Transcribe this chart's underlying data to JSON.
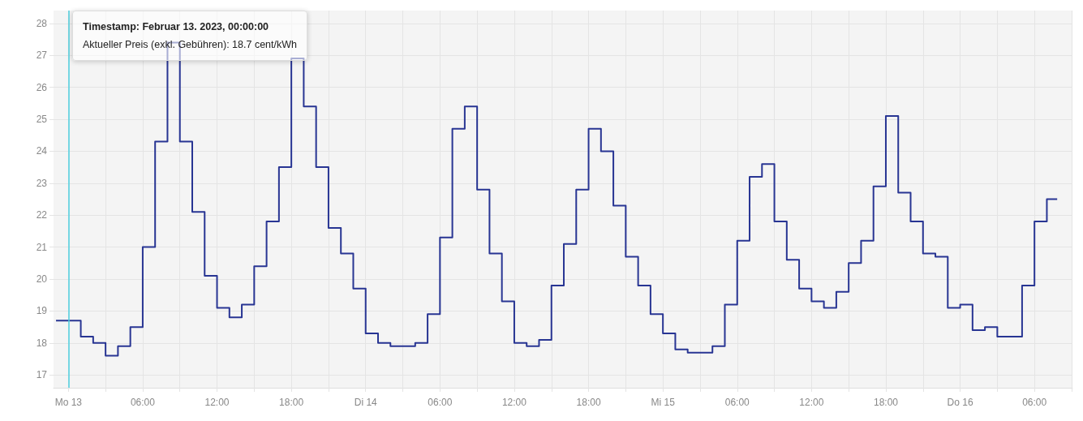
{
  "chart_data": {
    "type": "step",
    "annotations": [
      "Timestamp: Februar 13. 2023, 00:00:00",
      "Aktueller Preis (exkl. Gebühren): 18.7 cent/kWh"
    ],
    "x": [
      "2023-02-12T23:00",
      "2023-02-13T00:00",
      "2023-02-13T01:00",
      "2023-02-13T02:00",
      "2023-02-13T03:00",
      "2023-02-13T04:00",
      "2023-02-13T05:00",
      "2023-02-13T06:00",
      "2023-02-13T07:00",
      "2023-02-13T08:00",
      "2023-02-13T09:00",
      "2023-02-13T10:00",
      "2023-02-13T11:00",
      "2023-02-13T12:00",
      "2023-02-13T13:00",
      "2023-02-13T14:00",
      "2023-02-13T15:00",
      "2023-02-13T16:00",
      "2023-02-13T17:00",
      "2023-02-13T18:00",
      "2023-02-13T19:00",
      "2023-02-13T20:00",
      "2023-02-13T21:00",
      "2023-02-13T22:00",
      "2023-02-13T23:00",
      "2023-02-14T00:00",
      "2023-02-14T01:00",
      "2023-02-14T02:00",
      "2023-02-14T03:00",
      "2023-02-14T04:00",
      "2023-02-14T05:00",
      "2023-02-14T06:00",
      "2023-02-14T07:00",
      "2023-02-14T08:00",
      "2023-02-14T09:00",
      "2023-02-14T10:00",
      "2023-02-14T11:00",
      "2023-02-14T12:00",
      "2023-02-14T13:00",
      "2023-02-14T14:00",
      "2023-02-14T15:00",
      "2023-02-14T16:00",
      "2023-02-14T17:00",
      "2023-02-14T18:00",
      "2023-02-14T19:00",
      "2023-02-14T20:00",
      "2023-02-14T21:00",
      "2023-02-14T22:00",
      "2023-02-14T23:00",
      "2023-02-15T00:00",
      "2023-02-15T01:00",
      "2023-02-15T02:00",
      "2023-02-15T03:00",
      "2023-02-15T04:00",
      "2023-02-15T05:00",
      "2023-02-15T06:00",
      "2023-02-15T07:00",
      "2023-02-15T08:00",
      "2023-02-15T09:00",
      "2023-02-15T10:00",
      "2023-02-15T11:00",
      "2023-02-15T12:00",
      "2023-02-15T13:00",
      "2023-02-15T14:00",
      "2023-02-15T15:00",
      "2023-02-15T16:00",
      "2023-02-15T17:00",
      "2023-02-15T18:00",
      "2023-02-15T19:00",
      "2023-02-15T20:00",
      "2023-02-15T21:00",
      "2023-02-15T22:00",
      "2023-02-15T23:00",
      "2023-02-16T00:00",
      "2023-02-16T01:00",
      "2023-02-16T02:00",
      "2023-02-16T03:00",
      "2023-02-16T04:00",
      "2023-02-16T05:00",
      "2023-02-16T06:00",
      "2023-02-16T07:00",
      "2023-02-16T07:50"
    ],
    "values": [
      18.7,
      18.7,
      18.2,
      18.0,
      17.6,
      17.9,
      18.5,
      21.0,
      24.3,
      27.4,
      24.3,
      22.1,
      20.1,
      19.1,
      18.8,
      19.2,
      20.4,
      21.8,
      23.5,
      26.9,
      25.4,
      23.5,
      21.6,
      20.8,
      19.7,
      18.3,
      18.0,
      17.9,
      17.9,
      18.0,
      18.9,
      21.3,
      24.7,
      25.4,
      22.8,
      20.8,
      19.3,
      18.0,
      17.9,
      18.1,
      19.8,
      21.1,
      22.8,
      24.7,
      24.0,
      22.3,
      20.7,
      19.8,
      18.9,
      18.3,
      17.8,
      17.7,
      17.7,
      17.9,
      19.2,
      21.2,
      23.2,
      23.6,
      21.8,
      20.6,
      19.7,
      19.3,
      19.1,
      19.6,
      20.5,
      21.2,
      22.9,
      25.1,
      22.7,
      21.8,
      20.8,
      20.7,
      19.1,
      19.2,
      18.4,
      18.5,
      18.2,
      18.2,
      19.8,
      21.8,
      22.5,
      22.5
    ],
    "color": "#283593",
    "xlim": [
      "2023-02-12T22:48",
      "2023-02-16T09:04"
    ],
    "xticks": [
      {
        "value": "2023-02-13T00:00",
        "label": "Mo 13"
      },
      {
        "value": "2023-02-13T03:00",
        "label": null
      },
      {
        "value": "2023-02-13T06:00",
        "label": "06:00"
      },
      {
        "value": "2023-02-13T09:00",
        "label": null
      },
      {
        "value": "2023-02-13T12:00",
        "label": "12:00"
      },
      {
        "value": "2023-02-13T15:00",
        "label": null
      },
      {
        "value": "2023-02-13T18:00",
        "label": "18:00"
      },
      {
        "value": "2023-02-13T21:00",
        "label": null
      },
      {
        "value": "2023-02-14T00:00",
        "label": "Di 14"
      },
      {
        "value": "2023-02-14T03:00",
        "label": null
      },
      {
        "value": "2023-02-14T06:00",
        "label": "06:00"
      },
      {
        "value": "2023-02-14T09:00",
        "label": null
      },
      {
        "value": "2023-02-14T12:00",
        "label": "12:00"
      },
      {
        "value": "2023-02-14T15:00",
        "label": null
      },
      {
        "value": "2023-02-14T18:00",
        "label": "18:00"
      },
      {
        "value": "2023-02-14T21:00",
        "label": null
      },
      {
        "value": "2023-02-15T00:00",
        "label": "Mi 15"
      },
      {
        "value": "2023-02-15T03:00",
        "label": null
      },
      {
        "value": "2023-02-15T06:00",
        "label": "06:00"
      },
      {
        "value": "2023-02-15T09:00",
        "label": null
      },
      {
        "value": "2023-02-15T12:00",
        "label": "12:00"
      },
      {
        "value": "2023-02-15T15:00",
        "label": null
      },
      {
        "value": "2023-02-15T18:00",
        "label": "18:00"
      },
      {
        "value": "2023-02-15T21:00",
        "label": null
      },
      {
        "value": "2023-02-16T00:00",
        "label": "Do 16"
      },
      {
        "value": "2023-02-16T03:00",
        "label": null
      },
      {
        "value": "2023-02-16T06:00",
        "label": "06:00"
      },
      {
        "value": "2023-02-16T09:00",
        "label": null
      }
    ],
    "ylim": [
      16.6,
      28.4
    ],
    "yticks": [
      17,
      18,
      19,
      20,
      21,
      22,
      23,
      24,
      25,
      26,
      27,
      28
    ],
    "grid": true,
    "ref_lines": [
      {
        "axis": "x",
        "value": "2023-02-13T00:00",
        "color": "#4dd0e1"
      }
    ]
  }
}
